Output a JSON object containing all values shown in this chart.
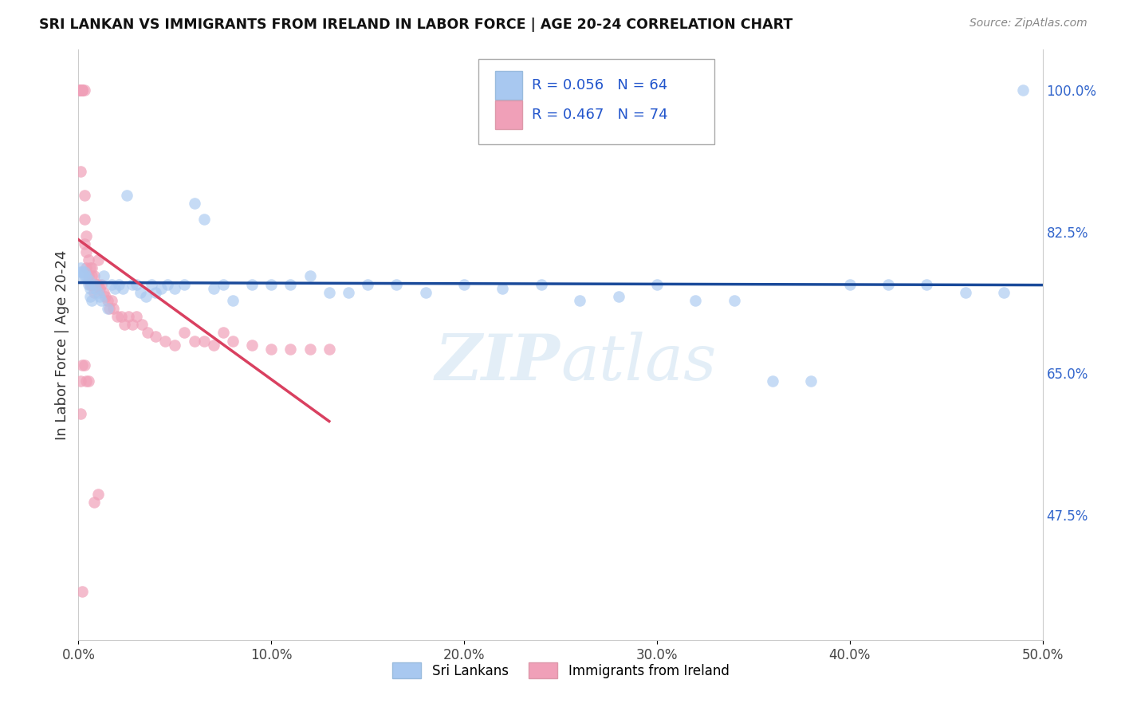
{
  "title": "SRI LANKAN VS IMMIGRANTS FROM IRELAND IN LABOR FORCE | AGE 20-24 CORRELATION CHART",
  "source": "Source: ZipAtlas.com",
  "ylabel": "In Labor Force | Age 20-24",
  "xlim": [
    0.0,
    0.5
  ],
  "ylim": [
    0.32,
    1.05
  ],
  "xticks": [
    0.0,
    0.1,
    0.2,
    0.3,
    0.4,
    0.5
  ],
  "xticklabels": [
    "0.0%",
    "10.0%",
    "20.0%",
    "30.0%",
    "40.0%",
    "50.0%"
  ],
  "yticks_right": [
    1.0,
    0.825,
    0.65,
    0.475
  ],
  "yticklabels_right": [
    "100.0%",
    "82.5%",
    "65.0%",
    "47.5%"
  ],
  "grid_color": "#cccccc",
  "background_color": "#ffffff",
  "blue_color": "#a8c8f0",
  "pink_color": "#f0a0b8",
  "blue_line_color": "#1a4a9a",
  "pink_line_color": "#d94060",
  "legend_R_blue": "R = 0.056",
  "legend_N_blue": "N = 64",
  "legend_R_pink": "R = 0.467",
  "legend_N_pink": "N = 74",
  "legend_label_blue": "Sri Lankans",
  "legend_label_pink": "Immigrants from Ireland",
  "watermark": "ZIPatlas",
  "blue_x": [
    0.001,
    0.001,
    0.002,
    0.002,
    0.003,
    0.003,
    0.004,
    0.005,
    0.005,
    0.006,
    0.006,
    0.007,
    0.008,
    0.009,
    0.01,
    0.011,
    0.012,
    0.013,
    0.015,
    0.017,
    0.019,
    0.021,
    0.023,
    0.025,
    0.028,
    0.03,
    0.032,
    0.035,
    0.038,
    0.04,
    0.043,
    0.046,
    0.05,
    0.055,
    0.06,
    0.065,
    0.07,
    0.075,
    0.08,
    0.09,
    0.1,
    0.11,
    0.12,
    0.13,
    0.14,
    0.15,
    0.165,
    0.18,
    0.2,
    0.22,
    0.24,
    0.26,
    0.28,
    0.3,
    0.32,
    0.34,
    0.36,
    0.38,
    0.4,
    0.42,
    0.44,
    0.46,
    0.48,
    0.49
  ],
  "blue_y": [
    0.775,
    0.78,
    0.77,
    0.775,
    0.77,
    0.775,
    0.77,
    0.76,
    0.765,
    0.755,
    0.745,
    0.74,
    0.76,
    0.755,
    0.75,
    0.745,
    0.74,
    0.77,
    0.73,
    0.76,
    0.755,
    0.76,
    0.755,
    0.87,
    0.76,
    0.76,
    0.75,
    0.745,
    0.76,
    0.75,
    0.755,
    0.76,
    0.755,
    0.76,
    0.86,
    0.84,
    0.755,
    0.76,
    0.74,
    0.76,
    0.76,
    0.76,
    0.77,
    0.75,
    0.75,
    0.76,
    0.76,
    0.75,
    0.76,
    0.755,
    0.76,
    0.74,
    0.745,
    0.76,
    0.74,
    0.74,
    0.64,
    0.64,
    0.76,
    0.76,
    0.76,
    0.75,
    0.75,
    1.0
  ],
  "pink_x": [
    0.001,
    0.001,
    0.001,
    0.001,
    0.001,
    0.001,
    0.001,
    0.001,
    0.001,
    0.001,
    0.001,
    0.002,
    0.002,
    0.002,
    0.002,
    0.002,
    0.003,
    0.003,
    0.003,
    0.003,
    0.004,
    0.004,
    0.004,
    0.005,
    0.005,
    0.006,
    0.006,
    0.007,
    0.007,
    0.007,
    0.008,
    0.008,
    0.009,
    0.01,
    0.01,
    0.011,
    0.012,
    0.013,
    0.014,
    0.015,
    0.016,
    0.017,
    0.018,
    0.02,
    0.022,
    0.024,
    0.026,
    0.028,
    0.03,
    0.033,
    0.036,
    0.04,
    0.045,
    0.05,
    0.055,
    0.06,
    0.065,
    0.07,
    0.075,
    0.08,
    0.09,
    0.1,
    0.11,
    0.12,
    0.13,
    0.001,
    0.001,
    0.002,
    0.003,
    0.004,
    0.005,
    0.008,
    0.01,
    0.002
  ],
  "pink_y": [
    1.0,
    1.0,
    1.0,
    1.0,
    1.0,
    1.0,
    1.0,
    1.0,
    1.0,
    1.0,
    0.9,
    1.0,
    1.0,
    1.0,
    1.0,
    1.0,
    1.0,
    0.87,
    0.84,
    0.81,
    0.8,
    0.78,
    0.82,
    0.79,
    0.77,
    0.78,
    0.76,
    0.78,
    0.77,
    0.76,
    0.77,
    0.75,
    0.76,
    0.76,
    0.79,
    0.755,
    0.76,
    0.75,
    0.745,
    0.74,
    0.73,
    0.74,
    0.73,
    0.72,
    0.72,
    0.71,
    0.72,
    0.71,
    0.72,
    0.71,
    0.7,
    0.695,
    0.69,
    0.685,
    0.7,
    0.69,
    0.69,
    0.685,
    0.7,
    0.69,
    0.685,
    0.68,
    0.68,
    0.68,
    0.68,
    0.64,
    0.6,
    0.66,
    0.66,
    0.64,
    0.64,
    0.49,
    0.5,
    0.38
  ]
}
